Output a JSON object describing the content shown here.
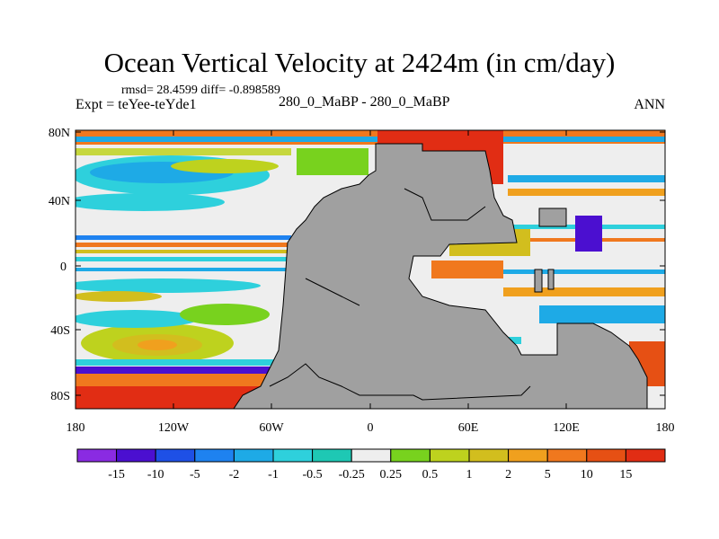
{
  "title": "Ocean Vertical Velocity at 2424m (in cm/day)",
  "stats": "rmsd= 28.4599 diff= -0.898589",
  "experiment": "Expt = teYee-teYde1",
  "subtitle": "280_0_MaBP - 280_0_MaBP",
  "season": "ANN",
  "colors": {
    "land": "#a0a0a0",
    "background": "#ffffff"
  },
  "map": {
    "lat_labels": [
      "80N",
      "40N",
      "0",
      "40S",
      "80S"
    ],
    "lon_labels": [
      "180",
      "120W",
      "60W",
      "0",
      "60E",
      "120E",
      "180"
    ]
  },
  "colorbar": {
    "labels": [
      "-15",
      "-10",
      "-5",
      "-2",
      "-1",
      "-0.5",
      "-0.25",
      "0.25",
      "0.5",
      "1",
      "2",
      "5",
      "10",
      "15"
    ],
    "colors": [
      "#8a2be2",
      "#4b0fd0",
      "#1e50e6",
      "#1e82f0",
      "#1eaae6",
      "#2ed0dc",
      "#1ec8b4",
      "#eeeeee",
      "#78d21e",
      "#bed21e",
      "#d2be1e",
      "#f0a01e",
      "#f0781e",
      "#e65014",
      "#e12d14"
    ]
  }
}
